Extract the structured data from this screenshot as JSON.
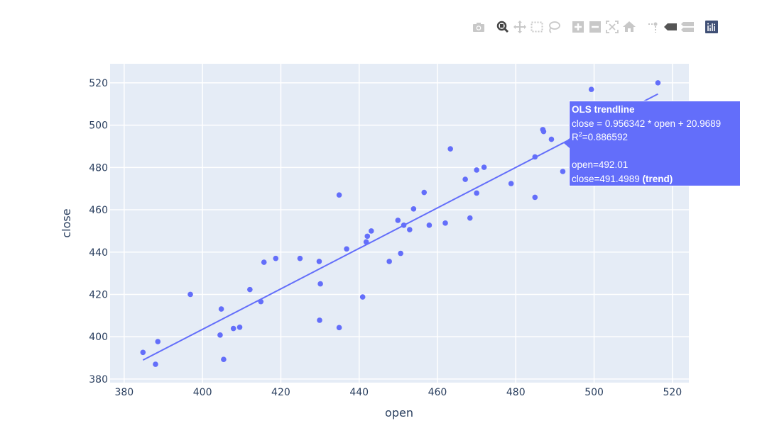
{
  "modebar": {
    "icons": [
      "camera-icon",
      "zoom-icon",
      "pan-icon",
      "box-select-icon",
      "lasso-select-icon",
      "zoom-in-icon",
      "zoom-out-icon",
      "autoscale-icon",
      "home-icon",
      "spikelines-icon",
      "hover-closest-icon",
      "hover-compare-icon",
      "plotly-logo-icon"
    ],
    "active": "zoom-icon"
  },
  "tooltip": {
    "title": "OLS trendline",
    "equation": "close = 0.956342 * open + 20.9689",
    "r2_label": "R",
    "r2_sup": "2",
    "r2_value": "=0.886592",
    "open_line": "open=492.01",
    "close_line": "close=491.4989",
    "close_suffix": "(trend)"
  },
  "chart_data": {
    "type": "scatter",
    "xlabel": "open",
    "ylabel": "close",
    "xlim": [
      376.4,
      524.2
    ],
    "ylim": [
      378.3,
      529.0
    ],
    "x_ticks": [
      380,
      400,
      420,
      440,
      460,
      480,
      500,
      520
    ],
    "y_ticks": [
      380,
      400,
      420,
      440,
      460,
      480,
      500,
      520
    ],
    "grid": true,
    "colors": {
      "marker": "#636efa",
      "plot_bg": "#e5ecf6",
      "text": "#2a3f5f",
      "modebar_active": "#444444",
      "modebar": "#c8c8c8",
      "logo": "#3f4f75"
    },
    "points": [
      [
        384.8,
        392.6
      ],
      [
        388.0,
        387.0
      ],
      [
        388.6,
        397.7
      ],
      [
        396.9,
        420.0
      ],
      [
        404.8,
        413.1
      ],
      [
        404.5,
        400.8
      ],
      [
        405.4,
        389.3
      ],
      [
        407.9,
        403.9
      ],
      [
        409.5,
        404.5
      ],
      [
        412.1,
        422.3
      ],
      [
        414.9,
        416.6
      ],
      [
        415.7,
        435.2
      ],
      [
        418.7,
        437.0
      ],
      [
        424.9,
        437.0
      ],
      [
        429.8,
        435.6
      ],
      [
        430.1,
        425.0
      ],
      [
        429.9,
        407.8
      ],
      [
        434.9,
        404.3
      ],
      [
        436.8,
        441.5
      ],
      [
        440.9,
        418.8
      ],
      [
        441.8,
        444.8
      ],
      [
        442.1,
        447.5
      ],
      [
        447.7,
        435.6
      ],
      [
        434.9,
        467.0
      ],
      [
        443.1,
        450.0
      ],
      [
        450.6,
        439.4
      ],
      [
        449.9,
        455.0
      ],
      [
        451.4,
        452.7
      ],
      [
        452.9,
        450.6
      ],
      [
        453.9,
        460.4
      ],
      [
        456.6,
        468.2
      ],
      [
        457.9,
        452.7
      ],
      [
        462.0,
        453.7
      ],
      [
        463.3,
        488.8
      ],
      [
        467.1,
        474.4
      ],
      [
        468.3,
        456.1
      ],
      [
        470.0,
        478.8
      ],
      [
        470.0,
        467.9
      ],
      [
        471.9,
        480.1
      ],
      [
        478.8,
        472.4
      ],
      [
        484.9,
        485.0
      ],
      [
        484.9,
        465.9
      ],
      [
        486.9,
        497.9
      ],
      [
        487.1,
        497.0
      ],
      [
        489.1,
        493.3
      ],
      [
        492.0,
        478.1
      ],
      [
        499.3,
        516.9
      ],
      [
        516.3,
        520.0
      ]
    ],
    "trendline": {
      "slope": 0.956342,
      "intercept": 20.9689,
      "x_range": [
        384.8,
        516.3
      ],
      "r_squared": 0.886592
    },
    "hover": {
      "open": 492.01,
      "close": 491.4989
    }
  }
}
